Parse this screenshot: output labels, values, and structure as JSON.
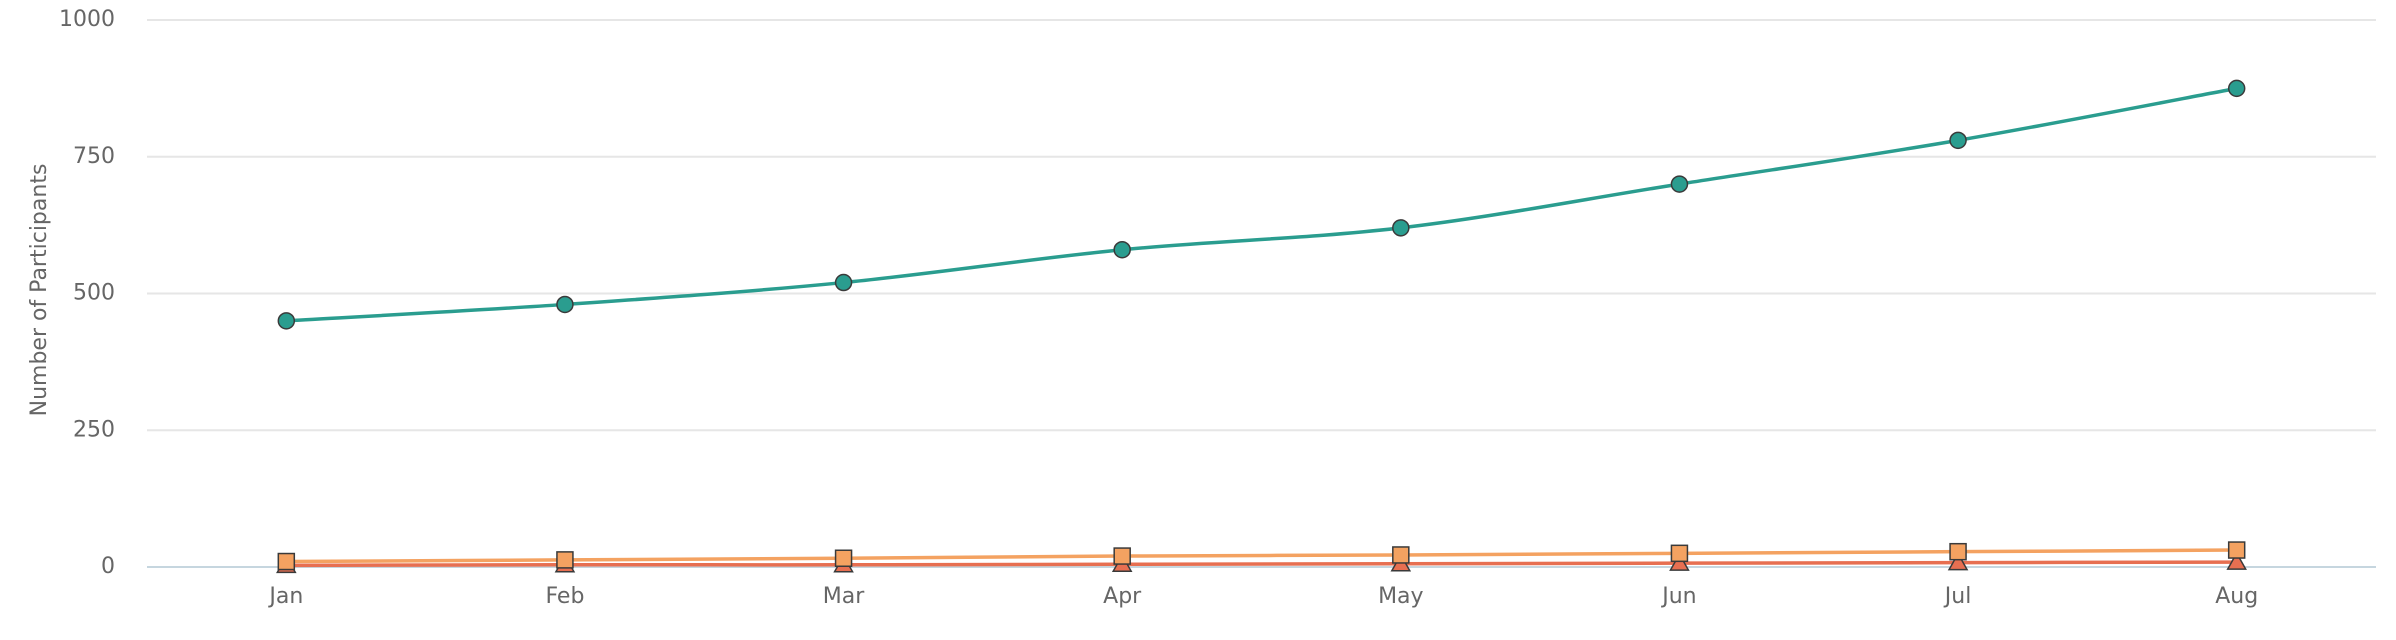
{
  "chart_data": {
    "type": "line",
    "y_label": "Number of Participants",
    "categories": [
      "Jan",
      "Feb",
      "Mar",
      "Apr",
      "May",
      "Jun",
      "Jul",
      "Aug"
    ],
    "series": [
      {
        "color": "#2a9d8f",
        "marker": "circle",
        "values": [
          450,
          480,
          520,
          580,
          620,
          700,
          780,
          875
        ]
      },
      {
        "color": "#f4a261",
        "marker": "square",
        "values": [
          10,
          13,
          16,
          20,
          22,
          25,
          28,
          31
        ]
      },
      {
        "color": "#e76f51",
        "marker": "triangle",
        "values": [
          3,
          4,
          4,
          5,
          6,
          7,
          8,
          9
        ]
      }
    ],
    "ylim": [
      0,
      1000
    ],
    "yticks": [
      0,
      250,
      500,
      750,
      1000
    ],
    "grid": true
  }
}
